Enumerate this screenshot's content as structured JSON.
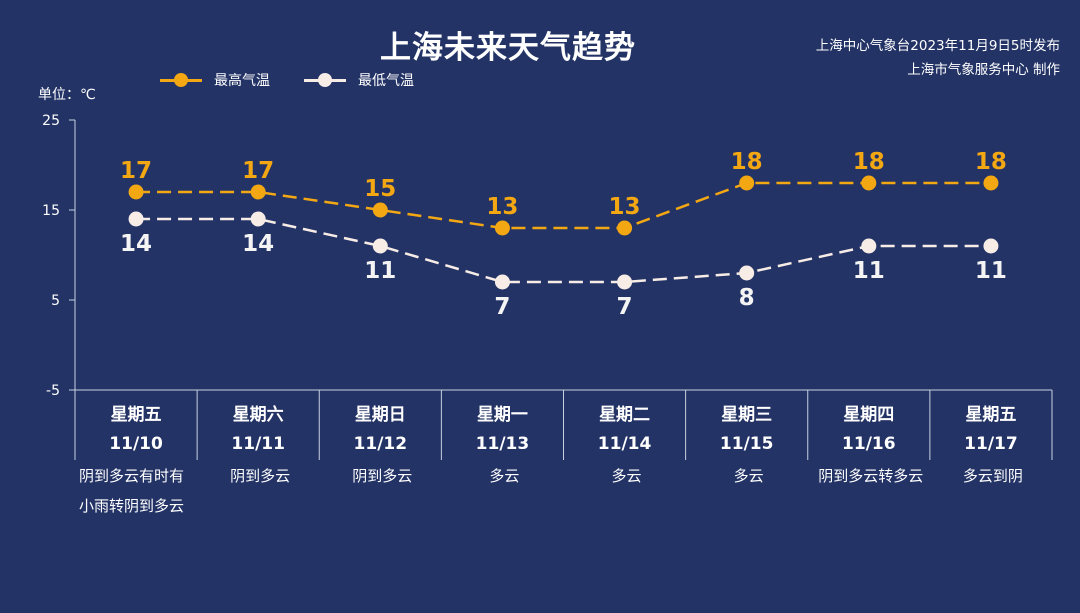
{
  "title": "上海未来天气趋势",
  "source": {
    "line1": "上海中心气象台2023年11月9日5时发布",
    "line2": "上海市气象服务中心 制作"
  },
  "unit_label": "单位：℃",
  "legend": {
    "high_label": "最高气温",
    "low_label": "最低气温"
  },
  "colors": {
    "background": "#233366",
    "high": "#f3a712",
    "low": "#f7ece6",
    "text": "#ffffff"
  },
  "days": [
    {
      "weekday": "星期五",
      "date": "11/10",
      "weather": "阴到多云有时有小雨转阴到多云"
    },
    {
      "weekday": "星期六",
      "date": "11/11",
      "weather": "阴到多云"
    },
    {
      "weekday": "星期日",
      "date": "11/12",
      "weather": "阴到多云"
    },
    {
      "weekday": "星期一",
      "date": "11/13",
      "weather": "多云"
    },
    {
      "weekday": "星期二",
      "date": "11/14",
      "weather": "多云"
    },
    {
      "weekday": "星期三",
      "date": "11/15",
      "weather": "多云"
    },
    {
      "weekday": "星期四",
      "date": "11/16",
      "weather": "阴到多云转多云"
    },
    {
      "weekday": "星期五",
      "date": "11/17",
      "weather": "多云到阴"
    }
  ],
  "chart_data": {
    "type": "line",
    "title": "上海未来天气趋势",
    "ylabel": "单位：℃",
    "categories": [
      "11/10",
      "11/11",
      "11/12",
      "11/13",
      "11/14",
      "11/15",
      "11/16",
      "11/17"
    ],
    "ylim": [
      -5,
      25
    ],
    "yticks": [
      -5,
      5,
      15,
      25
    ],
    "grid": false,
    "legend_position": "top-left",
    "series": [
      {
        "name": "最高气温",
        "values": [
          17,
          17,
          15,
          13,
          13,
          18,
          18,
          18
        ],
        "color": "#f3a712"
      },
      {
        "name": "最低气温",
        "values": [
          14,
          14,
          11,
          7,
          7,
          8,
          11,
          11
        ],
        "color": "#f7ece6"
      }
    ]
  }
}
